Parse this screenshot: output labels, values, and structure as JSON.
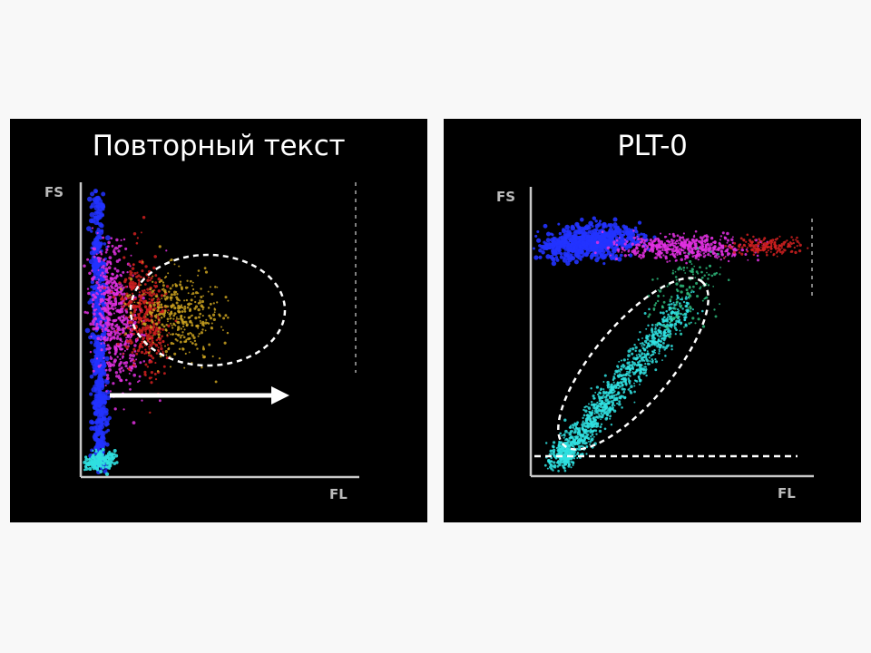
{
  "chart_data": [
    {
      "type": "scatter",
      "title": "Повторный текст",
      "xlabel": "FL",
      "ylabel": "FS",
      "grid": false,
      "annotations": [
        "dashed ellipse around yellow cluster",
        "arrow pointing right along FL"
      ],
      "series": [
        {
          "color": "#2233ff",
          "points": [
            [
              0.06,
              0.5
            ],
            [
              0.05,
              0.8
            ],
            [
              0.07,
              0.3
            ],
            [
              0.06,
              0.15
            ]
          ]
        },
        {
          "color": "#e030e0",
          "points": [
            [
              0.12,
              0.55
            ],
            [
              0.1,
              0.65
            ],
            [
              0.14,
              0.45
            ]
          ]
        },
        {
          "color": "#d02020",
          "points": [
            [
              0.22,
              0.55
            ],
            [
              0.2,
              0.6
            ],
            [
              0.25,
              0.5
            ]
          ]
        },
        {
          "color": "#c8a020",
          "points": [
            [
              0.35,
              0.55
            ],
            [
              0.32,
              0.6
            ],
            [
              0.4,
              0.52
            ]
          ]
        },
        {
          "color": "#30e0e0",
          "points": [
            [
              0.05,
              0.04
            ],
            [
              0.08,
              0.06
            ]
          ]
        }
      ]
    },
    {
      "type": "scatter",
      "title": "PLT-0",
      "xlabel": "FL",
      "ylabel": "FS",
      "grid": false,
      "annotations": [
        "dashed ellipse around cyan cluster",
        "dashed horizontal line near FS baseline"
      ],
      "series": [
        {
          "color": "#2233ff",
          "points": [
            [
              0.2,
              0.82
            ],
            [
              0.15,
              0.8
            ],
            [
              0.28,
              0.83
            ]
          ]
        },
        {
          "color": "#e030e0",
          "points": [
            [
              0.45,
              0.8
            ],
            [
              0.55,
              0.8
            ],
            [
              0.62,
              0.79
            ]
          ]
        },
        {
          "color": "#d02020",
          "points": [
            [
              0.8,
              0.8
            ],
            [
              0.88,
              0.8
            ]
          ]
        },
        {
          "color": "#30e0e0",
          "points": [
            [
              0.15,
              0.1
            ],
            [
              0.25,
              0.25
            ],
            [
              0.35,
              0.38
            ]
          ]
        },
        {
          "color": "#30c080",
          "points": [
            [
              0.5,
              0.6
            ],
            [
              0.58,
              0.68
            ]
          ]
        }
      ]
    }
  ]
}
